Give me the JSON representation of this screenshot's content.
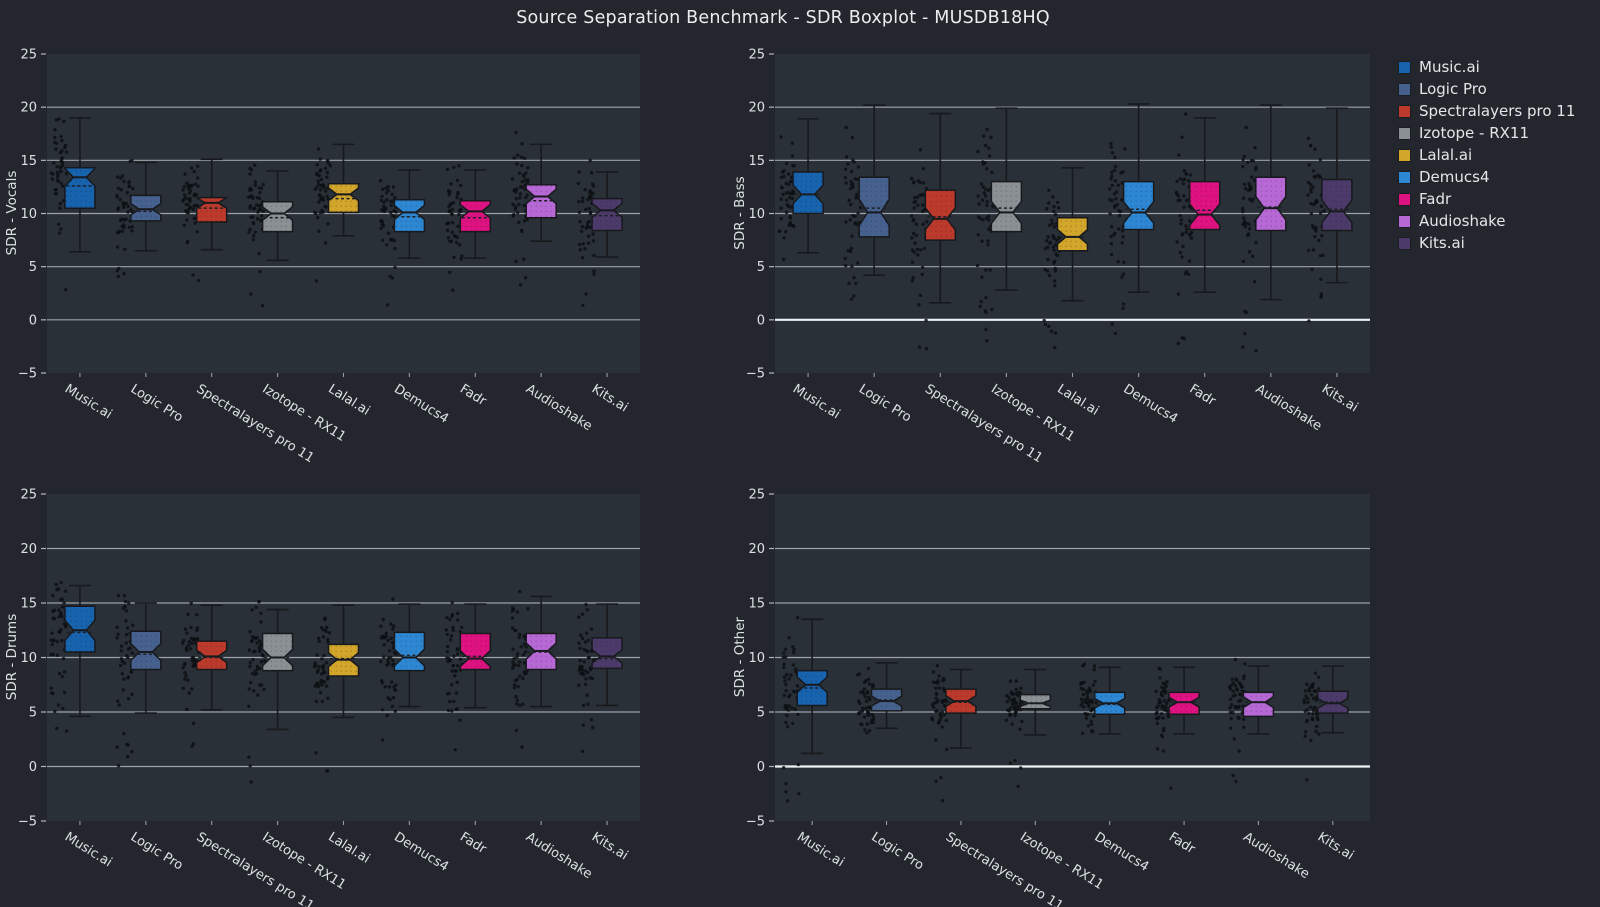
{
  "chart_data": {
    "type": "box",
    "figure_title": "Source Separation Benchmark - SDR Boxplot - MUSDB18HQ",
    "notched": true,
    "points_per_group": 50,
    "y_axis": {
      "min": -5,
      "max": 25,
      "ticks": [
        -5,
        0,
        5,
        10,
        15,
        20,
        25
      ],
      "gridlines": [
        0,
        5,
        10,
        15,
        20
      ]
    },
    "tools": [
      {
        "name": "Music.ai",
        "color": "#1863ae"
      },
      {
        "name": "Logic Pro",
        "color": "#46618e"
      },
      {
        "name": "Spectralayers pro 11",
        "color": "#bc3a2c"
      },
      {
        "name": "Izotope - RX11",
        "color": "#8b9095"
      },
      {
        "name": "Lalal.ai",
        "color": "#d2a52b"
      },
      {
        "name": "Demucs4",
        "color": "#2e87d2"
      },
      {
        "name": "Fadr",
        "color": "#de1280"
      },
      {
        "name": "Audioshake",
        "color": "#b668d5"
      },
      {
        "name": "Kits.ai",
        "color": "#4c3b6a"
      }
    ],
    "panels": [
      {
        "ylabel": "SDR - Vocals",
        "zero_line": false,
        "categories": [
          "Music.ai",
          "Logic Pro",
          "Spectralayers pro 11",
          "Izotope - RX11",
          "Lalal.ai",
          "Demucs4",
          "Fadr",
          "Audioshake",
          "Kits.ai"
        ],
        "stats": [
          {
            "whislo": 6.4,
            "q1": 10.5,
            "med": 13.4,
            "mean": 12.6,
            "q3": 14.3,
            "whishi": 19.0
          },
          {
            "whislo": 6.5,
            "q1": 9.3,
            "med": 10.4,
            "mean": 10.2,
            "q3": 11.7,
            "whishi": 14.8
          },
          {
            "whislo": 6.6,
            "q1": 9.2,
            "med": 11.0,
            "mean": 10.5,
            "q3": 11.5,
            "whishi": 15.1
          },
          {
            "whislo": 5.6,
            "q1": 8.3,
            "med": 10.0,
            "mean": 9.6,
            "q3": 11.1,
            "whishi": 14.0
          },
          {
            "whislo": 7.9,
            "q1": 10.1,
            "med": 11.8,
            "mean": 11.4,
            "q3": 12.8,
            "whishi": 16.5
          },
          {
            "whislo": 5.8,
            "q1": 8.3,
            "med": 10.1,
            "mean": 9.7,
            "q3": 11.3,
            "whishi": 14.1
          },
          {
            "whislo": 5.8,
            "q1": 8.3,
            "med": 10.2,
            "mean": 9.6,
            "q3": 11.2,
            "whishi": 14.1
          },
          {
            "whislo": 7.4,
            "q1": 9.6,
            "med": 11.6,
            "mean": 11.2,
            "q3": 12.7,
            "whishi": 16.5
          },
          {
            "whislo": 5.9,
            "q1": 8.4,
            "med": 10.3,
            "mean": 9.8,
            "q3": 11.4,
            "whishi": 13.9
          }
        ]
      },
      {
        "ylabel": "SDR - Bass",
        "zero_line": true,
        "categories": [
          "Music.ai",
          "Logic Pro",
          "Spectralayers pro 11",
          "Izotope - RX11",
          "Lalal.ai",
          "Demucs4",
          "Fadr",
          "Audioshake",
          "Kits.ai"
        ],
        "stats": [
          {
            "whislo": 6.3,
            "q1": 10.0,
            "med": 11.8,
            "mean": 11.8,
            "q3": 13.9,
            "whishi": 18.9
          },
          {
            "whislo": 4.2,
            "q1": 7.8,
            "med": 10.1,
            "mean": 10.5,
            "q3": 13.4,
            "whishi": 20.2
          },
          {
            "whislo": 1.6,
            "q1": 7.5,
            "med": 9.5,
            "mean": 9.7,
            "q3": 12.2,
            "whishi": 19.4
          },
          {
            "whislo": 2.8,
            "q1": 8.3,
            "med": 10.1,
            "mean": 10.5,
            "q3": 13.0,
            "whishi": 19.9
          },
          {
            "whislo": 1.8,
            "q1": 6.5,
            "med": 7.8,
            "mean": 7.8,
            "q3": 9.6,
            "whishi": 14.3
          },
          {
            "whislo": 2.6,
            "q1": 8.5,
            "med": 10.1,
            "mean": 10.4,
            "q3": 13.0,
            "whishi": 20.3
          },
          {
            "whislo": 2.6,
            "q1": 8.5,
            "med": 9.9,
            "mean": 10.3,
            "q3": 13.0,
            "whishi": 19.0
          },
          {
            "whislo": 1.9,
            "q1": 8.4,
            "med": 10.5,
            "mean": 10.6,
            "q3": 13.4,
            "whishi": 20.2
          },
          {
            "whislo": 3.5,
            "q1": 8.4,
            "med": 10.2,
            "mean": 10.4,
            "q3": 13.2,
            "whishi": 19.9
          }
        ]
      },
      {
        "ylabel": "SDR - Drums",
        "zero_line": false,
        "categories": [
          "Music.ai",
          "Logic Pro",
          "Spectralayers pro 11",
          "Izotope - RX11",
          "Lalal.ai",
          "Demucs4",
          "Fadr",
          "Audioshake",
          "Kits.ai"
        ],
        "stats": [
          {
            "whislo": 4.6,
            "q1": 10.5,
            "med": 12.5,
            "mean": 12.3,
            "q3": 14.7,
            "whishi": 16.6
          },
          {
            "whislo": 4.9,
            "q1": 8.9,
            "med": 10.5,
            "mean": 10.3,
            "q3": 12.4,
            "whishi": 15.0
          },
          {
            "whislo": 5.2,
            "q1": 8.9,
            "med": 10.1,
            "mean": 10.0,
            "q3": 11.5,
            "whishi": 14.8
          },
          {
            "whislo": 3.4,
            "q1": 8.8,
            "med": 10.0,
            "mean": 10.0,
            "q3": 12.2,
            "whishi": 14.4
          },
          {
            "whislo": 4.5,
            "q1": 8.3,
            "med": 9.8,
            "mean": 9.9,
            "q3": 11.2,
            "whishi": 14.8
          },
          {
            "whislo": 5.5,
            "q1": 8.8,
            "med": 10.0,
            "mean": 10.2,
            "q3": 12.3,
            "whishi": 14.9
          },
          {
            "whislo": 5.4,
            "q1": 8.9,
            "med": 9.9,
            "mean": 10.1,
            "q3": 12.2,
            "whishi": 14.9
          },
          {
            "whislo": 5.5,
            "q1": 8.9,
            "med": 10.6,
            "mean": 10.5,
            "q3": 12.2,
            "whishi": 15.6
          },
          {
            "whislo": 5.6,
            "q1": 9.0,
            "med": 10.1,
            "mean": 9.9,
            "q3": 11.8,
            "whishi": 14.9
          }
        ]
      },
      {
        "ylabel": "SDR - Other",
        "zero_line": true,
        "categories": [
          "Music.ai",
          "Logic Pro",
          "Spectralayers pro 11",
          "Izotope - RX11",
          "Demucs4",
          "Fadr",
          "Audioshake",
          "Kits.ai"
        ],
        "stats": [
          {
            "whislo": 1.2,
            "q1": 5.6,
            "med": 7.5,
            "mean": 7.2,
            "q3": 8.8,
            "whishi": 13.5
          },
          {
            "whislo": 3.5,
            "q1": 5.1,
            "med": 6.0,
            "mean": 6.1,
            "q3": 7.1,
            "whishi": 9.5
          },
          {
            "whislo": 1.7,
            "q1": 4.9,
            "med": 6.0,
            "mean": 5.9,
            "q3": 7.1,
            "whishi": 8.9
          },
          {
            "whislo": 2.9,
            "q1": 5.3,
            "med": 5.8,
            "mean": 5.8,
            "q3": 6.6,
            "whishi": 8.9
          },
          {
            "whislo": 3.0,
            "q1": 4.8,
            "med": 5.8,
            "mean": 5.7,
            "q3": 6.8,
            "whishi": 9.1
          },
          {
            "whislo": 3.0,
            "q1": 4.8,
            "med": 5.9,
            "mean": 5.9,
            "q3": 6.8,
            "whishi": 9.1
          },
          {
            "whislo": 3.0,
            "q1": 4.6,
            "med": 5.9,
            "mean": 5.9,
            "q3": 6.8,
            "whishi": 9.2
          },
          {
            "whislo": 3.1,
            "q1": 4.9,
            "med": 5.8,
            "mean": 5.9,
            "q3": 6.9,
            "whishi": 9.2
          }
        ]
      }
    ]
  },
  "legend": {
    "position": "right"
  },
  "style": {
    "figure_bg": "#23272d",
    "axes_bg": "#293037",
    "grid_color": "#c9cfd4",
    "zero_line_color": "#f0f3f5",
    "tick_text_color": "#dbe0e4",
    "box_edge_color": "#17191d",
    "scatter_color": "#0d0f13"
  }
}
